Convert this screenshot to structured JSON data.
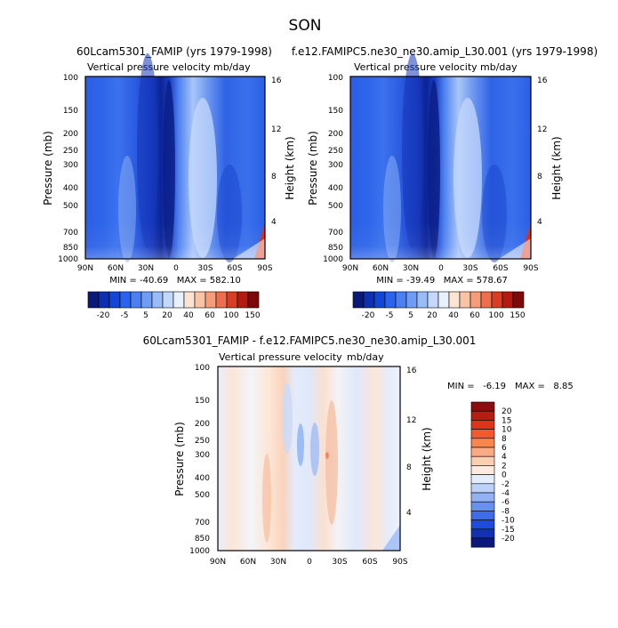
{
  "season_title": "SON",
  "panels": [
    {
      "case_title": "60Lcam5301_FAMIP (yrs 1979-1998)",
      "variable_label": "Vertical pressure velocity",
      "units": "mb/day",
      "y_left_label": "Pressure (mb)",
      "y_right_label": "Height (km)",
      "stats": "MIN = -40.69   MAX = 582.10",
      "kind": "full"
    },
    {
      "case_title": "f.e12.FAMIPC5.ne30_ne30.amip_L30.001 (yrs 1979-1998)",
      "variable_label": "Vertical pressure velocity",
      "units": "mb/day",
      "y_left_label": "Pressure (mb)",
      "y_right_label": "Height (km)",
      "stats": "MIN = -39.49   MAX = 578.67",
      "kind": "full"
    },
    {
      "case_title": "60Lcam5301_FAMIP - f.e12.FAMIPC5.ne30_ne30.amip_L30.001",
      "variable_label": "Vertical pressure velocity",
      "units": "mb/day",
      "y_left_label": "Pressure (mb)",
      "y_right_label": "Height (km)",
      "stats_min": "MIN =   -6.19",
      "stats_max": "MAX =   8.85",
      "kind": "diff"
    }
  ],
  "chart_data": [
    {
      "type": "heatmap",
      "title": "60Lcam5301_FAMIP (yrs 1979-1998)",
      "xticks": [
        "90N",
        "60N",
        "30N",
        "0",
        "30S",
        "60S",
        "90S"
      ],
      "pressure_ticks": [
        100,
        150,
        200,
        250,
        300,
        400,
        500,
        700,
        850,
        1000
      ],
      "height_ticks_km": [
        4,
        8,
        12,
        16
      ],
      "xlim": [
        "90N",
        "90S"
      ],
      "ylim": [
        1000,
        100
      ],
      "min": -40.69,
      "max": 582.1,
      "colorbar_levels": [
        -20,
        -5,
        5,
        20,
        40,
        60,
        100,
        150
      ],
      "colorbar_colors": [
        "#0b1a7a",
        "#0d2fb0",
        "#1446d6",
        "#2a64ee",
        "#4a80f2",
        "#6f9cf5",
        "#98bcf8",
        "#c3d8fb",
        "#e8f0fc",
        "#fde3d2",
        "#fbc3a6",
        "#f69c79",
        "#ee6e4d",
        "#d83e25",
        "#b31a12",
        "#7d0a0a"
      ]
    },
    {
      "type": "heatmap",
      "title": "f.e12.FAMIPC5.ne30_ne30.amip_L30.001 (yrs 1979-1998)",
      "xticks": [
        "90N",
        "60N",
        "30N",
        "0",
        "30S",
        "60S",
        "90S"
      ],
      "pressure_ticks": [
        100,
        150,
        200,
        250,
        300,
        400,
        500,
        700,
        850,
        1000
      ],
      "height_ticks_km": [
        4,
        8,
        12,
        16
      ],
      "xlim": [
        "90N",
        "90S"
      ],
      "ylim": [
        1000,
        100
      ],
      "min": -39.49,
      "max": 578.67,
      "colorbar_levels": [
        -20,
        -5,
        5,
        20,
        40,
        60,
        100,
        150
      ],
      "colorbar_colors": [
        "#0b1a7a",
        "#0d2fb0",
        "#1446d6",
        "#2a64ee",
        "#4a80f2",
        "#6f9cf5",
        "#98bcf8",
        "#c3d8fb",
        "#e8f0fc",
        "#fde3d2",
        "#fbc3a6",
        "#f69c79",
        "#ee6e4d",
        "#d83e25",
        "#b31a12",
        "#7d0a0a"
      ]
    },
    {
      "type": "heatmap",
      "title": "60Lcam5301_FAMIP - f.e12.FAMIPC5.ne30_ne30.amip_L30.001",
      "xticks": [
        "90N",
        "60N",
        "30N",
        "0",
        "30S",
        "60S",
        "90S"
      ],
      "pressure_ticks": [
        100,
        150,
        200,
        250,
        300,
        400,
        500,
        700,
        850,
        1000
      ],
      "height_ticks_km": [
        4,
        8,
        12,
        16
      ],
      "xlim": [
        "90N",
        "90S"
      ],
      "ylim": [
        1000,
        100
      ],
      "min": -6.19,
      "max": 8.85,
      "colorbar_levels": [
        20,
        15,
        10,
        8,
        6,
        4,
        2,
        0,
        -2,
        -4,
        -6,
        -8,
        -10,
        -15,
        -20
      ],
      "colorbar_colors": [
        "#8c0d0d",
        "#b51d12",
        "#d9361c",
        "#ef5a2e",
        "#f7864f",
        "#f9ac84",
        "#fbcfb2",
        "#fde9dd",
        "#e3edfc",
        "#bcd2f8",
        "#93b2f3",
        "#6a90ef",
        "#3f6ce9",
        "#1f4bd8",
        "#1230b0",
        "#0b1a7a"
      ]
    }
  ]
}
